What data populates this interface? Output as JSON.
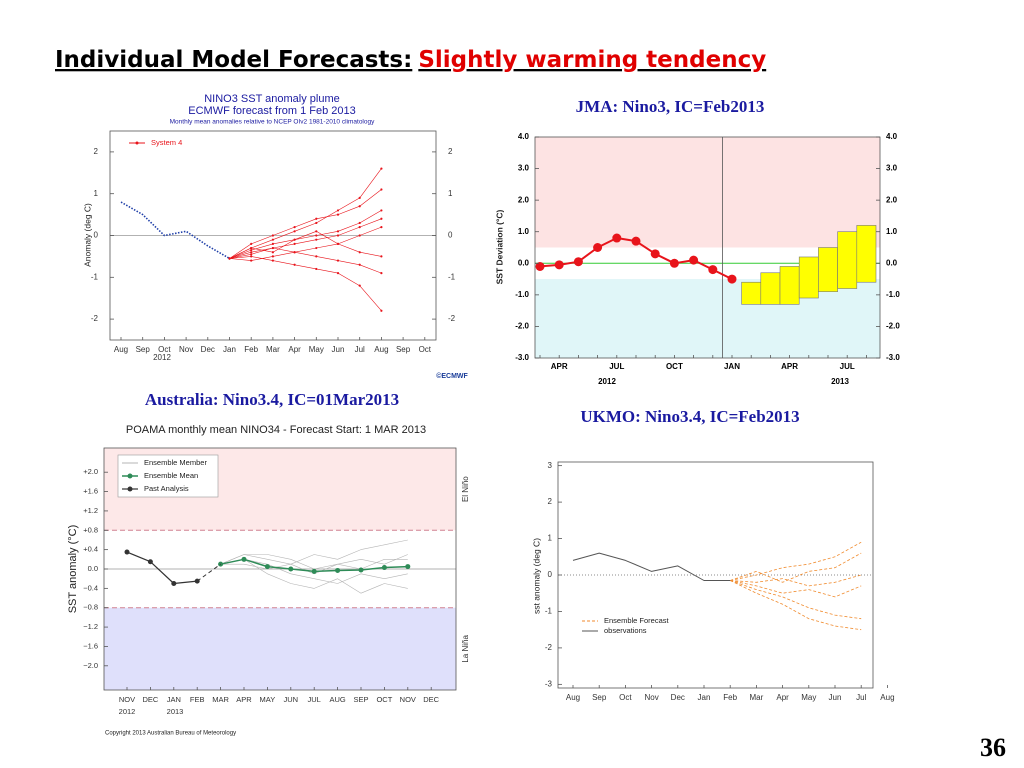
{
  "title": "Individual Model Forecasts:",
  "title_highlight": "Slightly warming tendency",
  "page_number": "36",
  "chart_data": [
    {
      "type": "line",
      "title": "NINO3 SST anomaly plume",
      "subtitle": "ECMWF forecast from 1 Feb 2013",
      "note": "Monthly mean anomalies relative to NCEP OIv2 1981-2010 climatology",
      "ylabel": "Anomaly (deg C)",
      "credit": "©ECMWF",
      "categories": [
        "Aug",
        "Sep",
        "Oct",
        "Nov",
        "Dec",
        "Jan",
        "Feb",
        "Mar",
        "Apr",
        "May",
        "Jun",
        "Jul",
        "Aug",
        "Sep",
        "Oct"
      ],
      "year_labels": [
        "2012"
      ],
      "ylim": [
        -2.5,
        2.5
      ],
      "yticks": [
        -2,
        -1,
        0,
        1,
        2
      ],
      "series": [
        {
          "color": "#1f3fa8",
          "values": [
            0.8,
            0.5,
            0.0,
            0.1,
            -0.25,
            -0.55,
            null,
            null,
            null,
            null,
            null,
            null,
            null,
            null,
            null
          ]
        },
        {
          "name": "System 4",
          "color": "#e8141b",
          "members": [
            [
              null,
              null,
              null,
              null,
              null,
              -0.55,
              -0.3,
              -0.1,
              0.1,
              0.3,
              0.6,
              0.9,
              1.6,
              null,
              null
            ],
            [
              null,
              null,
              null,
              null,
              null,
              -0.55,
              -0.4,
              -0.3,
              -0.2,
              -0.1,
              0.0,
              0.2,
              0.4,
              null,
              null
            ],
            [
              null,
              null,
              null,
              null,
              null,
              -0.55,
              -0.5,
              -0.6,
              -0.7,
              -0.8,
              -0.9,
              -1.2,
              -1.8,
              null,
              null
            ],
            [
              null,
              null,
              null,
              null,
              null,
              -0.55,
              -0.2,
              0.0,
              0.2,
              0.4,
              0.5,
              0.7,
              1.1,
              null,
              null
            ],
            [
              null,
              null,
              null,
              null,
              null,
              -0.55,
              -0.35,
              -0.2,
              -0.1,
              0.0,
              0.1,
              0.3,
              0.6,
              null,
              null
            ],
            [
              null,
              null,
              null,
              null,
              null,
              -0.55,
              -0.6,
              -0.5,
              -0.4,
              -0.5,
              -0.6,
              -0.7,
              -0.9,
              null,
              null
            ],
            [
              null,
              null,
              null,
              null,
              null,
              -0.55,
              -0.3,
              -0.4,
              -0.1,
              0.1,
              -0.2,
              0.0,
              0.2,
              null,
              null
            ],
            [
              null,
              null,
              null,
              null,
              null,
              -0.55,
              -0.45,
              -0.3,
              -0.4,
              -0.3,
              -0.2,
              -0.4,
              -0.5,
              null,
              null
            ]
          ]
        }
      ]
    },
    {
      "type": "line",
      "title": "JMA: Nino3, IC=Feb2013",
      "ylabel": "SST Deviation (°C)",
      "categories": [
        null,
        "APR",
        null,
        null,
        "JUL",
        null,
        null,
        "OCT",
        null,
        null,
        "JAN",
        null,
        null,
        "APR",
        null,
        null,
        "JUL",
        null
      ],
      "year_labels": [
        "2012",
        "2013"
      ],
      "ylim": [
        -3,
        4
      ],
      "yticks": [
        {
          "value": -3,
          "label": "-3.0"
        },
        {
          "value": -2,
          "label": "-2.0"
        },
        {
          "value": -1,
          "label": "-1.0"
        },
        {
          "value": 0,
          "label": "0.0"
        },
        {
          "value": 1,
          "label": "1.0"
        },
        {
          "value": 2,
          "label": "2.0"
        },
        {
          "value": 3,
          "label": "3.0"
        },
        {
          "value": 4,
          "label": "4.0"
        }
      ],
      "bands": [
        {
          "range": [
            0.5,
            4
          ],
          "color": "#fde3e3"
        },
        {
          "range": [
            -3,
            -0.5
          ],
          "color": "#e0f6f8"
        }
      ],
      "series": [
        {
          "color": "#e8141b",
          "values": [
            -0.1,
            -0.05,
            0.05,
            0.5,
            0.8,
            0.7,
            0.3,
            0.0,
            0.1,
            -0.2,
            -0.5,
            null,
            null,
            null,
            null,
            null,
            null,
            null
          ]
        }
      ],
      "forecast": {
        "color": "#ffff00",
        "low": [
          null,
          null,
          null,
          null,
          null,
          null,
          null,
          null,
          null,
          null,
          null,
          -1.3,
          -1.3,
          -1.3,
          -1.1,
          -0.9,
          -0.8,
          -0.6
        ],
        "high": [
          null,
          null,
          null,
          null,
          null,
          null,
          null,
          null,
          null,
          null,
          null,
          -0.6,
          -0.3,
          -0.1,
          0.2,
          0.5,
          1.0,
          1.2
        ]
      }
    },
    {
      "type": "line",
      "header": "Australia: Nino3.4, IC=01Mar2013",
      "title": "POAMA monthly mean NINO34 - Forecast Start: 1 MAR 2013",
      "ylabel": "SST anomaly (°C)",
      "credit": "Copyright 2013 Australian Bureau of Meteorology",
      "categories": [
        "NOV",
        "DEC",
        "JAN",
        "FEB",
        "MAR",
        "APR",
        "MAY",
        "JUN",
        "JUL",
        "AUG",
        "SEP",
        "OCT",
        "NOV",
        "DEC"
      ],
      "year_labels": [
        "2012",
        "2013"
      ],
      "ylim": [
        -2.5,
        2.5
      ],
      "yticks": [
        {
          "value": -2.0,
          "label": "−2.0"
        },
        {
          "value": -1.6,
          "label": "−1.6"
        },
        {
          "value": -1.2,
          "label": "−1.2"
        },
        {
          "value": -0.8,
          "label": "−0.8"
        },
        {
          "value": -0.4,
          "label": "−0.4"
        },
        {
          "value": 0,
          "label": "0.0"
        },
        {
          "value": 0.4,
          "label": "+0.4"
        },
        {
          "value": 0.8,
          "label": "+0.8"
        },
        {
          "value": 1.2,
          "label": "+1.2"
        },
        {
          "value": 1.6,
          "label": "+1.6"
        },
        {
          "value": 2.0,
          "label": "+2.0"
        }
      ],
      "bands": [
        {
          "range": [
            0.8,
            2.5
          ],
          "color": "#fde8e8",
          "label": "El Niño"
        },
        {
          "range": [
            -2.5,
            -0.8
          ],
          "color": "#dfe0fb",
          "label": "La Niña"
        }
      ],
      "series": [
        {
          "name": "Ensemble Member",
          "color": "#b5b5b5",
          "members": [
            [
              null,
              null,
              null,
              null,
              0.1,
              0.3,
              0.2,
              0.1,
              0.3,
              0.2,
              0.4,
              0.5,
              0.6,
              null
            ],
            [
              null,
              null,
              null,
              null,
              0.1,
              0.2,
              -0.1,
              -0.3,
              -0.4,
              -0.2,
              -0.5,
              -0.3,
              -0.4,
              null
            ],
            [
              null,
              null,
              null,
              null,
              0.1,
              0.1,
              0.0,
              0.1,
              -0.1,
              0.1,
              0.2,
              0.1,
              0.3,
              null
            ],
            [
              null,
              null,
              null,
              null,
              0.1,
              0.2,
              0.1,
              -0.1,
              -0.2,
              -0.3,
              -0.1,
              -0.2,
              -0.1,
              null
            ],
            [
              null,
              null,
              null,
              null,
              0.1,
              0.3,
              0.3,
              0.2,
              0.0,
              0.1,
              0.0,
              0.2,
              0.2,
              null
            ]
          ]
        },
        {
          "name": "Ensemble Mean",
          "color": "#2e8b57",
          "values": [
            null,
            null,
            null,
            null,
            0.1,
            0.2,
            0.05,
            0.0,
            -0.05,
            -0.03,
            -0.02,
            0.03,
            0.05,
            null
          ]
        },
        {
          "name": "Past Analysis",
          "color": "#333333",
          "values": [
            0.35,
            0.15,
            -0.3,
            -0.25,
            null,
            null,
            null,
            null,
            null,
            null,
            null,
            null,
            null,
            null
          ]
        }
      ]
    },
    {
      "type": "line",
      "title": "UKMO: Nino3.4, IC=Feb2013",
      "ylabel": "sst anomaly (deg C)",
      "categories": [
        "Aug",
        "Sep",
        "Oct",
        "Nov",
        "Dec",
        "Jan",
        "Feb",
        "Mar",
        "Apr",
        "May",
        "Jun",
        "Jul",
        "Aug"
      ],
      "ylim": [
        -3.1,
        3.1
      ],
      "yticks": [
        -3,
        -2,
        -1,
        0,
        1,
        2,
        3
      ],
      "series": [
        {
          "name": "Ensemble Forecast",
          "color": "#f08a2c",
          "members": [
            [
              null,
              null,
              null,
              null,
              null,
              null,
              -0.15,
              0.0,
              0.2,
              0.3,
              0.5,
              0.9,
              null
            ],
            [
              null,
              null,
              null,
              null,
              null,
              null,
              -0.15,
              -0.4,
              -0.6,
              -0.9,
              -1.1,
              -1.2,
              null
            ],
            [
              null,
              null,
              null,
              null,
              null,
              null,
              -0.15,
              -0.2,
              -0.1,
              -0.3,
              -0.2,
              0.0,
              null
            ],
            [
              null,
              null,
              null,
              null,
              null,
              null,
              -0.15,
              -0.5,
              -0.8,
              -1.2,
              -1.4,
              -1.5,
              null
            ],
            [
              null,
              null,
              null,
              null,
              null,
              null,
              -0.15,
              0.1,
              -0.2,
              0.1,
              0.2,
              0.6,
              null
            ],
            [
              null,
              null,
              null,
              null,
              null,
              null,
              -0.15,
              -0.3,
              -0.5,
              -0.4,
              -0.6,
              -0.3,
              null
            ]
          ]
        },
        {
          "name": "observations",
          "color": "#555555",
          "values": [
            0.4,
            0.6,
            0.4,
            0.1,
            0.25,
            -0.15,
            -0.15,
            null,
            null,
            null,
            null,
            null,
            null
          ]
        }
      ]
    }
  ]
}
